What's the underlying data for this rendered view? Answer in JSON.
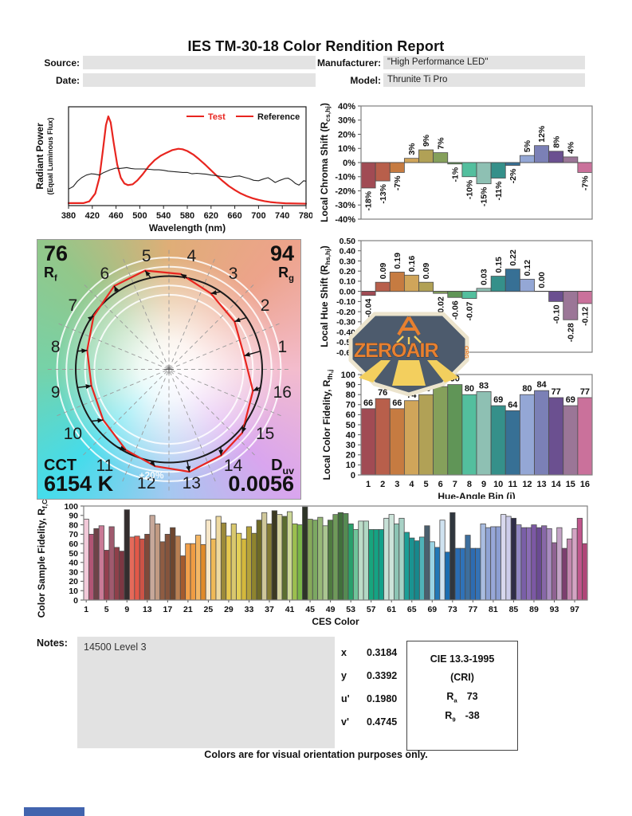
{
  "report": {
    "title": "IES TM-30-18 Color Rendition Report",
    "source_label": "Source:",
    "date_label": "Date:",
    "manufacturer_label": "Manufacturer:",
    "manufacturer_value": "\"High Performance LED\"",
    "model_label": "Model:",
    "model_value": "Thrunite Ti Pro",
    "notes_label": "Notes:",
    "notes_value": "14500 Level 3",
    "footer": "Colors are for visual orientation purposes only."
  },
  "chromaticity": {
    "rows": [
      [
        "x",
        "0.3184"
      ],
      [
        "y",
        "0.3392"
      ],
      [
        "u'",
        "0.1980"
      ],
      [
        "v'",
        "0.4745"
      ]
    ]
  },
  "cie": {
    "title": "CIE 13.3-1995",
    "subtitle": "(CRI)",
    "ra_label": "R",
    "ra_sub": "a",
    "ra_value": "73",
    "r9_label": "R",
    "r9_sub": "9",
    "r9_value": "-38"
  },
  "cvg": {
    "rf_value": "76",
    "rf_label": "R",
    "rf_sub": "f",
    "rg_value": "94",
    "rg_label": "R",
    "rg_sub": "g",
    "cct_label": "CCT",
    "cct_value": "6154 K",
    "duv_label": "D",
    "duv_sub": "uv",
    "duv_value": "0.0056",
    "ring_label": "+20%"
  },
  "logo": {
    "text": "ZEROAIR",
    "suffix": "ORG"
  },
  "bin_colors": [
    "#a14b54",
    "#b85f4b",
    "#c67b41",
    "#d0a55a",
    "#b1a156",
    "#85a05b",
    "#609557",
    "#53bf9e",
    "#8ec0b3",
    "#35908a",
    "#377095",
    "#94a7d5",
    "#7b80b6",
    "#6b5090",
    "#9b7697",
    "#ca719b"
  ],
  "chart_data": [
    {
      "id": "spectral",
      "type": "line",
      "xlabel": "Wavelength (nm)",
      "ylabel_line1": "Radiant Power",
      "ylabel_line2": "(Equal Luminous Flux)",
      "xlim": [
        380,
        780
      ],
      "xticks": [
        380,
        420,
        460,
        500,
        540,
        580,
        620,
        660,
        700,
        740,
        780
      ],
      "legend": [
        {
          "label": "Test",
          "text_color": "#e8251f"
        },
        {
          "label": "Reference",
          "text_color": "#111111"
        }
      ],
      "series": [
        {
          "name": "Test",
          "color": "#e8251f",
          "width": 2.2,
          "points": [
            [
              380,
              0.01
            ],
            [
              405,
              0.01
            ],
            [
              415,
              0.03
            ],
            [
              425,
              0.12
            ],
            [
              432,
              0.3
            ],
            [
              438,
              0.62
            ],
            [
              443,
              0.9
            ],
            [
              447,
              1.0
            ],
            [
              451,
              0.93
            ],
            [
              456,
              0.7
            ],
            [
              462,
              0.45
            ],
            [
              468,
              0.3
            ],
            [
              474,
              0.235
            ],
            [
              480,
              0.215
            ],
            [
              488,
              0.225
            ],
            [
              496,
              0.27
            ],
            [
              505,
              0.34
            ],
            [
              515,
              0.43
            ],
            [
              525,
              0.5
            ],
            [
              535,
              0.55
            ],
            [
              545,
              0.585
            ],
            [
              555,
              0.615
            ],
            [
              565,
              0.63
            ],
            [
              572,
              0.625
            ],
            [
              580,
              0.605
            ],
            [
              590,
              0.565
            ],
            [
              600,
              0.51
            ],
            [
              610,
              0.45
            ],
            [
              620,
              0.385
            ],
            [
              630,
              0.32
            ],
            [
              640,
              0.26
            ],
            [
              650,
              0.205
            ],
            [
              660,
              0.16
            ],
            [
              670,
              0.12
            ],
            [
              680,
              0.09
            ],
            [
              690,
              0.065
            ],
            [
              700,
              0.047
            ],
            [
              710,
              0.033
            ],
            [
              720,
              0.022
            ],
            [
              730,
              0.015
            ],
            [
              745,
              0.008
            ],
            [
              780,
              0.004
            ]
          ]
        },
        {
          "name": "Reference",
          "color": "#222222",
          "width": 1.1,
          "points": [
            [
              380,
              0.17
            ],
            [
              388,
              0.2
            ],
            [
              395,
              0.26
            ],
            [
              402,
              0.3
            ],
            [
              410,
              0.33
            ],
            [
              418,
              0.345
            ],
            [
              425,
              0.34
            ],
            [
              432,
              0.33
            ],
            [
              438,
              0.355
            ],
            [
              445,
              0.375
            ],
            [
              450,
              0.39
            ],
            [
              455,
              0.4
            ],
            [
              460,
              0.41
            ],
            [
              466,
              0.405
            ],
            [
              472,
              0.41
            ],
            [
              478,
              0.415
            ],
            [
              485,
              0.405
            ],
            [
              492,
              0.4
            ],
            [
              500,
              0.4
            ],
            [
              508,
              0.4
            ],
            [
              516,
              0.395
            ],
            [
              524,
              0.39
            ],
            [
              532,
              0.39
            ],
            [
              540,
              0.385
            ],
            [
              548,
              0.375
            ],
            [
              556,
              0.37
            ],
            [
              564,
              0.365
            ],
            [
              572,
              0.36
            ],
            [
              580,
              0.36
            ],
            [
              588,
              0.345
            ],
            [
              596,
              0.35
            ],
            [
              604,
              0.345
            ],
            [
              612,
              0.34
            ],
            [
              620,
              0.33
            ],
            [
              628,
              0.325
            ],
            [
              636,
              0.315
            ],
            [
              644,
              0.31
            ],
            [
              652,
              0.305
            ],
            [
              660,
              0.315
            ],
            [
              668,
              0.32
            ],
            [
              676,
              0.305
            ],
            [
              684,
              0.29
            ],
            [
              692,
              0.27
            ],
            [
              700,
              0.265
            ],
            [
              708,
              0.285
            ],
            [
              716,
              0.3
            ],
            [
              722,
              0.275
            ],
            [
              728,
              0.245
            ],
            [
              736,
              0.27
            ],
            [
              744,
              0.29
            ],
            [
              750,
              0.295
            ],
            [
              756,
              0.27
            ],
            [
              762,
              0.235
            ],
            [
              768,
              0.215
            ],
            [
              772,
              0.24
            ],
            [
              776,
              0.265
            ],
            [
              780,
              0.26
            ]
          ]
        }
      ]
    },
    {
      "id": "chroma_shift",
      "type": "bar",
      "ylabel": {
        "pre": "Local Chroma Shift (R",
        "sub": "cs,hj",
        "post": ")"
      },
      "ylim": [
        -40,
        40
      ],
      "ystep": 10,
      "yunit": "%",
      "values": [
        -18,
        -13,
        -7,
        3,
        9,
        7,
        -1,
        -10,
        -15,
        -11,
        -2,
        5,
        12,
        8,
        4,
        -7
      ],
      "value_suffix": "%",
      "grid": false,
      "legend_position": "none"
    },
    {
      "id": "hue_shift",
      "type": "bar",
      "ylabel": {
        "pre": "Local Hue Shift (R",
        "sub": "hs,hj",
        "post": ")"
      },
      "ylim": [
        -0.6,
        0.5
      ],
      "ystep": 0.1,
      "ydecimals": 2,
      "values": [
        -0.04,
        0.09,
        0.19,
        0.16,
        0.09,
        -0.02,
        -0.06,
        -0.07,
        0.03,
        0.15,
        0.22,
        0.12,
        0.0,
        -0.1,
        -0.28,
        -0.12
      ],
      "grid": false,
      "legend_position": "none"
    },
    {
      "id": "local_fidelity",
      "type": "bar",
      "ylabel": {
        "pre": "Local Color Fidelity, R",
        "sub": "fh,j",
        "post": ""
      },
      "xlabel": "Hue-Angle Bin (j)",
      "ylim": [
        0,
        100
      ],
      "ystep": 10,
      "categories": [
        1,
        2,
        3,
        4,
        5,
        6,
        7,
        8,
        9,
        10,
        11,
        12,
        13,
        14,
        15,
        16
      ],
      "values": [
        66,
        76,
        66,
        74,
        80,
        88,
        90,
        80,
        83,
        69,
        64,
        80,
        84,
        77,
        69,
        77
      ],
      "grid": false,
      "legend_position": "none"
    },
    {
      "id": "ces_fidelity",
      "type": "bar",
      "ylabel": {
        "pre": "Color Sample Fidelity, R",
        "sub": "f,CESi",
        "post": ""
      },
      "xlabel": "CES Color",
      "ylim": [
        0,
        100
      ],
      "ystep": 10,
      "xticks": [
        1,
        5,
        9,
        13,
        17,
        21,
        25,
        29,
        33,
        37,
        41,
        45,
        49,
        53,
        57,
        61,
        65,
        69,
        73,
        77,
        81,
        85,
        89,
        93,
        97
      ],
      "values": [
        86,
        70,
        76,
        79,
        53,
        78,
        56,
        52,
        96,
        67,
        68,
        65,
        70,
        90,
        81,
        62,
        70,
        77,
        68,
        47,
        60,
        60,
        69,
        59,
        85,
        65,
        89,
        82,
        68,
        81,
        71,
        65,
        78,
        71,
        85,
        93,
        81,
        95,
        91,
        89,
        94,
        81,
        80,
        99,
        86,
        85,
        88,
        79,
        85,
        91,
        93,
        92,
        81,
        75,
        84,
        84,
        75,
        75,
        75,
        87,
        91,
        81,
        87,
        72,
        66,
        63,
        67,
        79,
        62,
        56,
        85,
        51,
        93,
        55,
        55,
        69,
        55,
        55,
        81,
        77,
        78,
        78,
        91,
        89,
        87,
        80,
        77,
        77,
        80,
        77,
        79,
        76,
        61,
        77,
        55,
        65,
        76,
        87,
        60
      ],
      "colors": [
        "#f2c9d9",
        "#b05574",
        "#6e4348",
        "#c97a96",
        "#933f4e",
        "#a05a6e",
        "#8e3f49",
        "#7c3742",
        "#332d2e",
        "#e56a5a",
        "#e25848",
        "#cc5346",
        "#7e4a3a",
        "#c7a89a",
        "#c19a82",
        "#8f5c42",
        "#85543c",
        "#6e462f",
        "#b97f52",
        "#a35a2e",
        "#f2a04a",
        "#ef9c43",
        "#f4b765",
        "#e08a28",
        "#f7e7c8",
        "#efb957",
        "#eed9a0",
        "#9c8a3a",
        "#e7c84e",
        "#d9c86e",
        "#e3cf56",
        "#d4b83c",
        "#b5a23a",
        "#8f842e",
        "#6e6a26",
        "#cfc79a",
        "#857c34",
        "#3c3a22",
        "#d6d4a0",
        "#5c6e30",
        "#cdd898",
        "#9cbf4e",
        "#7ab648",
        "#2e3428",
        "#86a85a",
        "#7ca862",
        "#97b877",
        "#aac690",
        "#4f7a40",
        "#6f9a5a",
        "#41703c",
        "#558a52",
        "#29a06c",
        "#6fc49a",
        "#bcdcc8",
        "#b2d8c4",
        "#17a67e",
        "#14a384",
        "#12a08a",
        "#c6e0d6",
        "#cde4da",
        "#8cc4b4",
        "#a8d2c6",
        "#1c9e96",
        "#1a9391",
        "#17888c",
        "#4fb3b9",
        "#4a5f6e",
        "#9ad4e4",
        "#2277b5",
        "#cfe2f0",
        "#1b6db0",
        "#30363e",
        "#2a6db4",
        "#2f72b8",
        "#3d6f9e",
        "#2d6cb2",
        "#3472b6",
        "#a9bce0",
        "#8fa3d4",
        "#98a8d8",
        "#8c9ed2",
        "#d8d8ee",
        "#ccccea",
        "#2f2d48",
        "#9288c4",
        "#7a5fa8",
        "#8a6cb4",
        "#7c58a4",
        "#6a4a92",
        "#8868a8",
        "#a98cc0",
        "#8f6292",
        "#c4a3c6",
        "#7c3f6e",
        "#c387ae",
        "#d4a4c4",
        "#c0568c",
        "#b04678"
      ],
      "grid": false,
      "legend_position": "none"
    },
    {
      "id": "color_vector_graphic",
      "type": "scatter",
      "description": "TM-30 Color Vector Graphic: reference circle vs test polygon per 16 hue bins",
      "bins": [
        1,
        2,
        3,
        4,
        5,
        6,
        7,
        8,
        9,
        10,
        11,
        12,
        13,
        14,
        15,
        16
      ],
      "chroma_shift_pct": [
        -18,
        -13,
        -7,
        3,
        9,
        7,
        -1,
        -10,
        -15,
        -11,
        -2,
        5,
        12,
        8,
        4,
        -7
      ],
      "hue_shift": [
        -0.04,
        0.09,
        0.19,
        0.16,
        0.09,
        -0.02,
        -0.06,
        -0.07,
        0.03,
        0.15,
        0.22,
        0.12,
        0.0,
        -0.1,
        -0.28,
        -0.12
      ],
      "rf": 76,
      "rg": 94,
      "cct": "6154 K",
      "duv": 0.0056
    }
  ]
}
